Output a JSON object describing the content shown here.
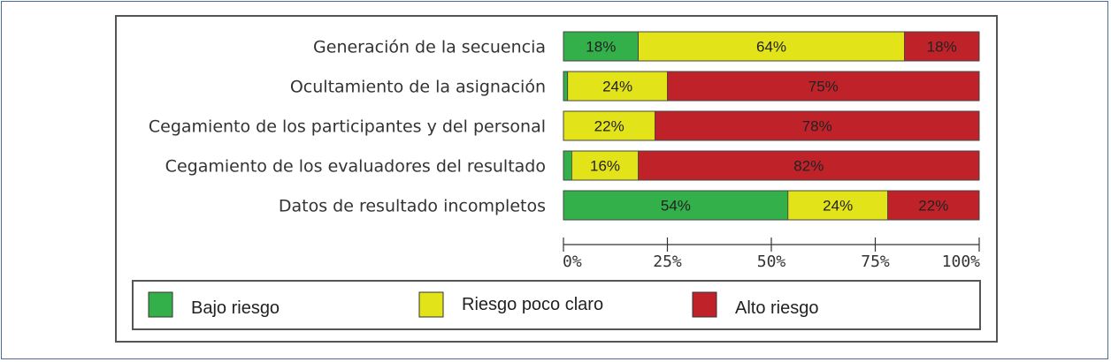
{
  "chart_data": {
    "type": "bar",
    "orientation": "horizontal",
    "stacked": true,
    "categories": [
      "Generación de la secuencia",
      "Ocultamiento de la asignación",
      "Cegamiento de los participantes y del personal",
      "Cegamiento de los evaluadores del resultado",
      "Datos de resultado incompletos"
    ],
    "series": [
      {
        "name": "Bajo riesgo",
        "color": "#33b04a",
        "values": [
          18,
          1,
          0,
          2,
          54
        ],
        "labels": [
          "18%",
          "",
          "",
          "",
          "54%"
        ]
      },
      {
        "name": "Riesgo poco claro",
        "color": "#e3e31a",
        "values": [
          64,
          24,
          22,
          16,
          24
        ],
        "labels": [
          "64%",
          "24%",
          "22%",
          "16%",
          "24%"
        ]
      },
      {
        "name": "Alto riesgo",
        "color": "#c0222a",
        "values": [
          18,
          75,
          78,
          82,
          22
        ],
        "labels": [
          "18%",
          "75%",
          "78%",
          "82%",
          "22%"
        ]
      }
    ],
    "xlim": [
      0,
      100
    ],
    "xticks": [
      "0%",
      "25%",
      "50%",
      "75%",
      "100%"
    ],
    "grid": false,
    "legend_position": "bottom"
  }
}
